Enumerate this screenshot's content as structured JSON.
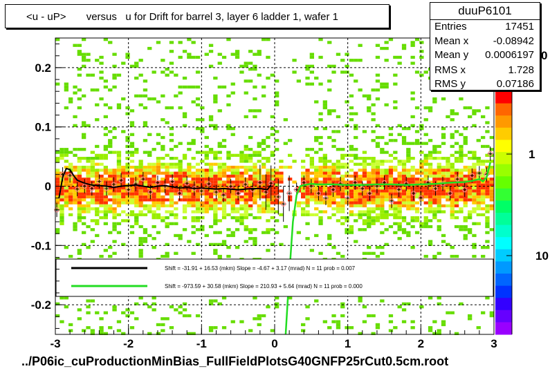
{
  "header": {
    "title": "<u - uP>       versus   u for Drift for barrel 3, layer 6 ladder 1, wafer 1"
  },
  "stats": {
    "name": "duuP6101",
    "rows": [
      {
        "label": "Entries",
        "value": "17451"
      },
      {
        "label": "Mean x",
        "value": "-0.08942"
      },
      {
        "label": "Mean y",
        "value": "0.0006197"
      },
      {
        "label": "RMS x",
        "value": "1.728"
      },
      {
        "label": "RMS y",
        "value": "0.07186"
      }
    ]
  },
  "footer": {
    "path": "../P06ic_cuProductionMinBias_FullFieldPlotsG40GNFP25rCut0.5cm.root"
  },
  "colors": {
    "fit_black": "#000000",
    "fit_green": "#22dd22",
    "points": "#ff8888"
  },
  "chart_data": {
    "type": "heatmap",
    "xlim": [
      -3,
      3
    ],
    "ylim": [
      -0.25,
      0.25
    ],
    "x_ticks": [
      "-3",
      "-2",
      "-1",
      "0",
      "1",
      "2",
      "3"
    ],
    "y_ticks": [
      "-0.2",
      "-0.1",
      "0",
      "0.1",
      "0.2"
    ],
    "grid": true,
    "colorbar": {
      "scale": "log",
      "tick_labels": [
        "1",
        "10"
      ],
      "clipped_label": "0"
    },
    "fits": [
      {
        "legend_text": "Shift =   -31.91 + 16.53 (mkm) Slope =    -4.67 + 3.17 (mrad)  N = 11 prob = 0.007",
        "color": "black"
      },
      {
        "legend_text": "Shift =  -973.59 + 30.58 (mkm) Slope =   210.93 + 5.64 (mrad)  N = 11 prob = 0.000",
        "color": "green"
      }
    ],
    "profile_black": {
      "x": [
        -2.95,
        -2.9,
        -2.85,
        -2.8,
        -2.75,
        -2.7,
        -2.6,
        -2.5,
        -2.4,
        -2.3,
        -2.2,
        -2.1,
        -2.0,
        -1.9,
        -1.8,
        -1.7,
        -1.6,
        -1.5,
        -1.4,
        -1.3,
        -1.2,
        -1.1,
        -1.0,
        -0.9,
        -0.8,
        -0.7,
        -0.6,
        -0.5,
        -0.4,
        -0.3,
        -0.2,
        -0.1,
        -0.05
      ],
      "y": [
        -0.02,
        0.015,
        0.03,
        0.028,
        0.018,
        0.01,
        0.005,
        0.002,
        0.001,
        0.0,
        -0.002,
        0.0,
        0.001,
        0.002,
        0.0,
        -0.002,
        0.0,
        0.001,
        -0.001,
        -0.003,
        -0.002,
        -0.004,
        -0.003,
        -0.004,
        -0.005,
        -0.004,
        -0.005,
        -0.006,
        -0.005,
        -0.004,
        -0.004,
        -0.006,
        0.002
      ]
    },
    "profile_green": {
      "x": [
        0.15,
        0.2,
        0.25,
        0.3,
        0.35,
        0.4,
        0.5,
        0.6,
        0.8,
        1.0,
        1.2,
        1.4,
        1.6,
        1.8,
        2.0,
        2.2,
        2.4,
        2.6,
        2.7,
        2.8,
        2.85,
        2.9,
        2.95
      ],
      "y": [
        -0.25,
        -0.15,
        -0.06,
        -0.015,
        0.0,
        0.002,
        0.004,
        0.003,
        0.003,
        0.002,
        0.002,
        0.003,
        0.003,
        0.002,
        0.003,
        0.004,
        0.006,
        0.007,
        0.009,
        0.012,
        0.008,
        0.015,
        0.04
      ]
    },
    "points": {
      "x": [
        -2.98,
        -2.9,
        -2.8,
        -2.7,
        -2.6,
        -2.5,
        -2.4,
        -2.3,
        -2.2,
        -2.1,
        -2.0,
        -1.9,
        -1.8,
        -1.7,
        -1.6,
        -1.5,
        -1.4,
        -1.3,
        -1.2,
        -1.1,
        -1.0,
        -0.9,
        -0.8,
        -0.7,
        -0.6,
        -0.5,
        -0.4,
        -0.3,
        -0.2,
        -0.12,
        -0.05,
        0.05,
        0.12,
        0.2,
        0.3,
        0.4,
        0.5,
        0.6,
        0.7,
        0.8,
        0.9,
        1.0,
        1.1,
        1.2,
        1.3,
        1.4,
        1.5,
        1.6,
        1.7,
        1.8,
        1.9,
        2.0,
        2.1,
        2.2,
        2.3,
        2.4,
        2.5,
        2.6,
        2.7,
        2.8,
        2.9,
        2.95
      ],
      "y": [
        -0.04,
        0.02,
        0.018,
        -0.005,
        0.0,
        -0.004,
        0.008,
        -0.004,
        0.003,
        0.01,
        -0.006,
        0.004,
        0.012,
        -0.01,
        0.006,
        0.0,
        0.008,
        -0.012,
        0.005,
        -0.004,
        -0.008,
        0.004,
        -0.01,
        -0.015,
        0.0,
        -0.012,
        0.003,
        -0.006,
        0.006,
        -0.01,
        0.005,
        -0.018,
        -0.03,
        -0.012,
        -0.006,
        0.006,
        0.0,
        -0.012,
        -0.02,
        -0.006,
        0.004,
        -0.02,
        0.006,
        -0.004,
        -0.012,
        0.0,
        0.006,
        -0.025,
        -0.006,
        0.004,
        -0.012,
        -0.02,
        0.006,
        -0.004,
        0.004,
        -0.012,
        0.012,
        -0.006,
        0.018,
        0.022,
        0.02,
        0.055
      ]
    }
  }
}
